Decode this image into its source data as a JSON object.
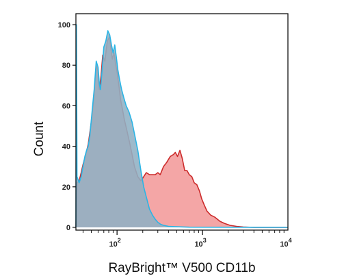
{
  "chart_data": {
    "type": "area",
    "xlabel": "RayBright™ V500 CD11b",
    "ylabel": "Count",
    "x_scale": "log",
    "xlim": [
      33,
      10000
    ],
    "ylim": [
      0,
      100
    ],
    "y_ticks": [
      0,
      20,
      40,
      60,
      80,
      100
    ],
    "y_tick_labels": [
      "0",
      "20",
      "40",
      "60",
      "80",
      "100"
    ],
    "x_ticks": [
      100,
      1000,
      10000
    ],
    "x_tick_labels": [
      {
        "base": "10",
        "exp": "2"
      },
      {
        "base": "10",
        "exp": "3"
      },
      {
        "base": "10",
        "exp": "4"
      }
    ],
    "grid": false,
    "series": [
      {
        "fill": "#f4a6a6",
        "stroke": "#cc2b2b",
        "x": [
          33,
          34,
          36,
          38,
          40,
          43,
          46,
          50,
          53,
          57,
          60,
          62,
          65,
          68,
          72,
          77,
          82,
          85,
          88,
          92,
          96,
          100,
          105,
          110,
          116,
          122,
          130,
          140,
          150,
          160,
          175,
          190,
          205,
          220,
          240,
          260,
          280,
          300,
          320,
          350,
          380,
          420,
          460,
          480,
          510,
          545,
          580,
          620,
          660,
          700,
          750,
          800,
          860,
          920,
          980,
          1050,
          1130,
          1250,
          1400,
          1600,
          1800,
          2100,
          2500,
          3000,
          4000,
          10000
        ],
        "y": [
          0,
          22,
          23,
          27,
          31,
          36,
          41,
          52,
          62,
          80,
          77,
          68,
          75,
          85,
          82,
          92,
          94,
          88,
          83,
          86,
          81,
          77,
          70,
          63,
          58,
          53,
          48,
          42,
          36,
          30,
          25,
          23,
          25,
          27,
          26,
          26,
          26,
          27,
          26,
          30,
          32,
          35,
          36,
          37,
          35,
          38,
          34,
          28,
          28,
          26,
          25,
          22,
          21,
          18,
          14,
          11,
          8,
          6,
          5,
          3,
          2,
          1,
          0.5,
          0.2,
          0,
          0
        ]
      },
      {
        "fill": "#8fb0c4",
        "fill_opacity": 0.88,
        "stroke": "#2bb5e6",
        "x": [
          33,
          33.5,
          34,
          36,
          38,
          40,
          42,
          44,
          46,
          48,
          51,
          54,
          57,
          60,
          62,
          64,
          67,
          70,
          74,
          78,
          82,
          86,
          90,
          94,
          98,
          102,
          107,
          113,
          120,
          128,
          138,
          150,
          162,
          175,
          190,
          205,
          220,
          240,
          260,
          280,
          300,
          325,
          350,
          400,
          500,
          700,
          10000
        ],
        "y": [
          0,
          100,
          25,
          22,
          25,
          30,
          35,
          38,
          40,
          45,
          57,
          68,
          82,
          79,
          71,
          68,
          78,
          89,
          92,
          97,
          95,
          90,
          86,
          90,
          84,
          78,
          73,
          68,
          64,
          60,
          57,
          52,
          45,
          38,
          28,
          20,
          15,
          9,
          6,
          4,
          2.5,
          1.5,
          1,
          0.5,
          0.3,
          0.1,
          0
        ]
      }
    ]
  }
}
